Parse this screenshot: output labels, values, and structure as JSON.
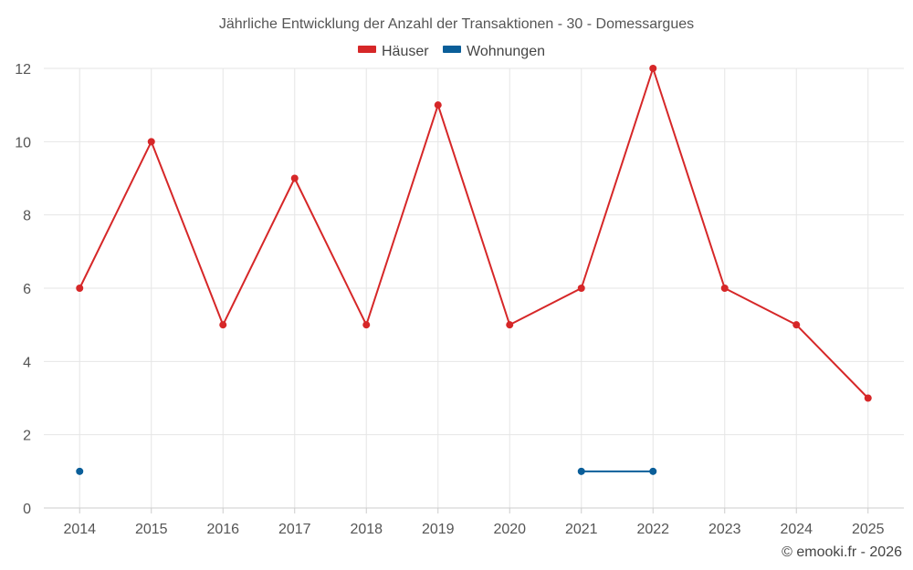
{
  "chart_data": {
    "type": "line",
    "title": "Jährliche Entwicklung der Anzahl der Transaktionen - 30 - Domessargues",
    "xlabel": "",
    "ylabel": "",
    "categories": [
      "2014",
      "2015",
      "2016",
      "2017",
      "2018",
      "2019",
      "2020",
      "2021",
      "2022",
      "2023",
      "2024",
      "2025"
    ],
    "ylim": [
      0,
      12
    ],
    "yticks": [
      "0",
      "2",
      "4",
      "6",
      "8",
      "10",
      "12"
    ],
    "grid": true,
    "legend_position": "top-center",
    "series": [
      {
        "name": "Häuser",
        "color": "#d62728",
        "values": [
          6,
          10,
          5,
          9,
          5,
          11,
          5,
          6,
          12,
          6,
          5,
          3
        ]
      },
      {
        "name": "Wohnungen",
        "color": "#0a5e99",
        "values": [
          1,
          null,
          null,
          null,
          null,
          null,
          null,
          1,
          1,
          null,
          null,
          null
        ]
      }
    ]
  },
  "footer": {
    "credit": "© emooki.fr - 2026"
  }
}
